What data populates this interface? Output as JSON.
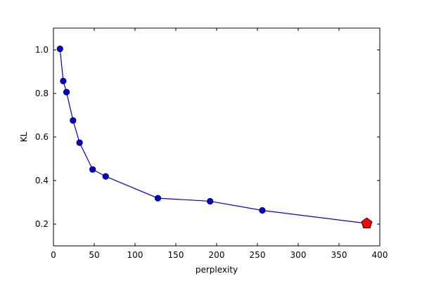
{
  "chart_data": {
    "type": "line",
    "title": "",
    "xlabel": "perplexity",
    "ylabel": "KL",
    "xlim": [
      0,
      400
    ],
    "ylim": [
      0.1,
      1.1
    ],
    "xticks": [
      0,
      50,
      100,
      150,
      200,
      250,
      300,
      350,
      400
    ],
    "yticks": [
      0.2,
      0.4,
      0.6,
      0.8,
      1.0
    ],
    "grid": false,
    "series": [
      {
        "x": [
          8,
          12,
          16,
          24,
          32,
          48,
          64,
          128,
          192,
          256,
          384
        ],
        "y": [
          1.005,
          0.857,
          0.806,
          0.676,
          0.574,
          0.451,
          0.419,
          0.319,
          0.305,
          0.263,
          0.203
        ],
        "color": "#0000cc",
        "marker_color": "#0000cc"
      }
    ],
    "highlight": {
      "x": 384,
      "y": 0.203,
      "marker": "pentagon",
      "color": "#ff0000"
    }
  }
}
